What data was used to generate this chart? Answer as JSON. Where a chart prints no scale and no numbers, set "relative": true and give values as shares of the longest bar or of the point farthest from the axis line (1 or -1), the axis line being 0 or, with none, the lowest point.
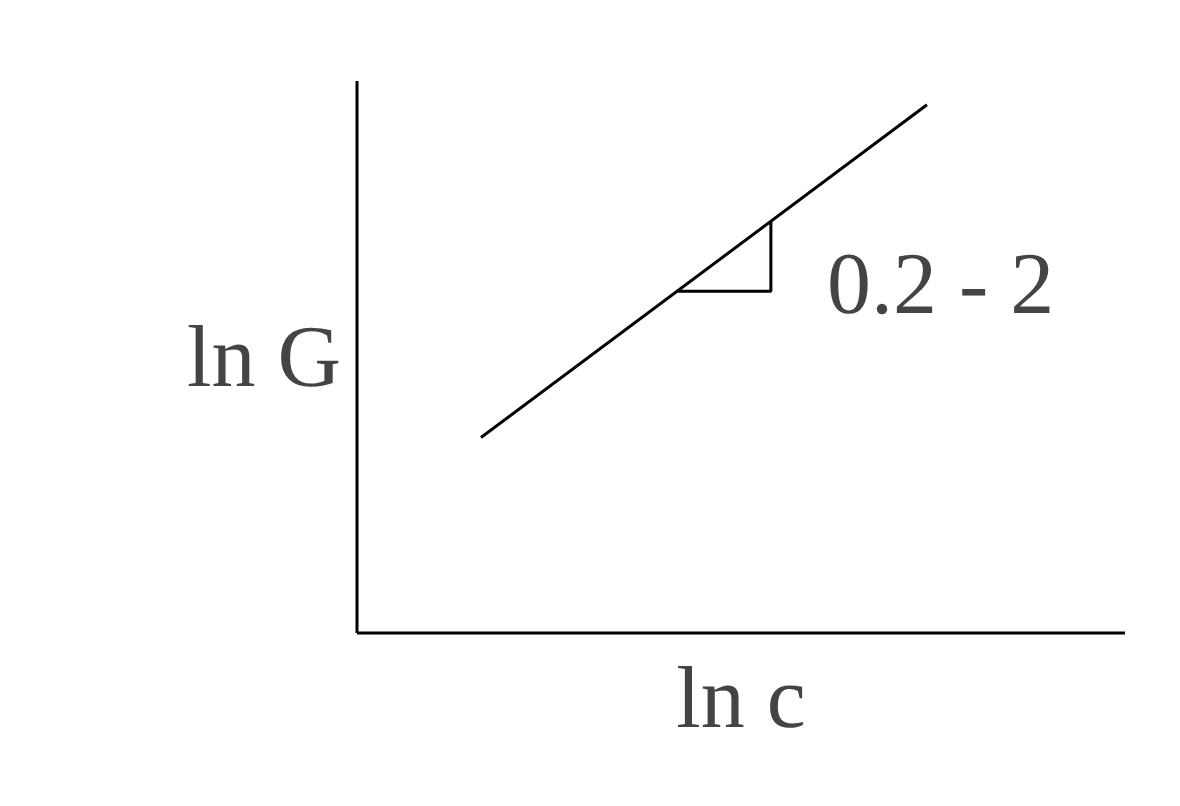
{
  "chart_data": {
    "type": "line",
    "relative": true,
    "categories": [
      null,
      null
    ],
    "xlabel": "ln c",
    "ylabel": "ln G",
    "series": [
      {
        "color": "#000000",
        "values": [
          0.37,
          1
        ]
      }
    ],
    "annotations": [
      "0.2 - 2"
    ],
    "marker": "none",
    "line_style": "solid"
  }
}
